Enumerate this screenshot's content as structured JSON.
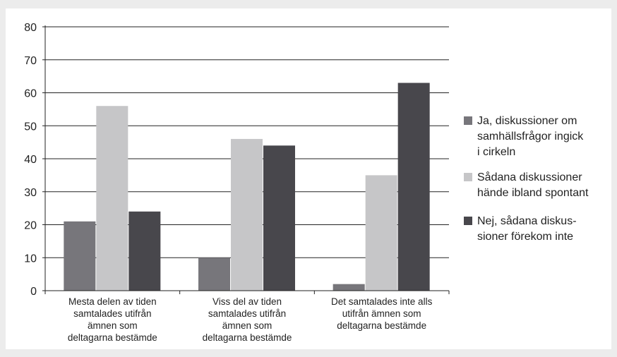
{
  "colors": {
    "background": "#ececec",
    "plot_background": "#ffffff",
    "axis": "#222222",
    "gridline": "#222222",
    "series": [
      "#77767b",
      "#c6c6c8",
      "#48474c"
    ]
  },
  "chart_data": {
    "type": "bar",
    "ylim": [
      0,
      80
    ],
    "yticks": [
      0,
      10,
      20,
      30,
      40,
      50,
      60,
      70,
      80
    ],
    "grid": true,
    "legend_position": "right",
    "categories": [
      [
        "Mesta delen av tiden",
        "samtalades utifrån",
        "ämnen som",
        "deltagarna bestämde"
      ],
      [
        "Viss del av tiden",
        "samtalades utifrån",
        "ämnen som",
        "deltagarna bestämde"
      ],
      [
        "Det samtalades inte alls",
        "utifrån ämnen som",
        "deltagarna bestämde"
      ]
    ],
    "series": [
      {
        "name": [
          "Ja, diskussioner om",
          "samhällsfrågor ingick",
          "i cirkeln"
        ],
        "values": [
          21,
          10,
          2
        ]
      },
      {
        "name": [
          "Sådana diskussioner",
          "hände ibland spontant"
        ],
        "values": [
          56,
          46,
          35
        ]
      },
      {
        "name": [
          "Nej, sådana diskus-",
          "sioner förekom inte"
        ],
        "values": [
          24,
          44,
          63
        ]
      }
    ]
  }
}
